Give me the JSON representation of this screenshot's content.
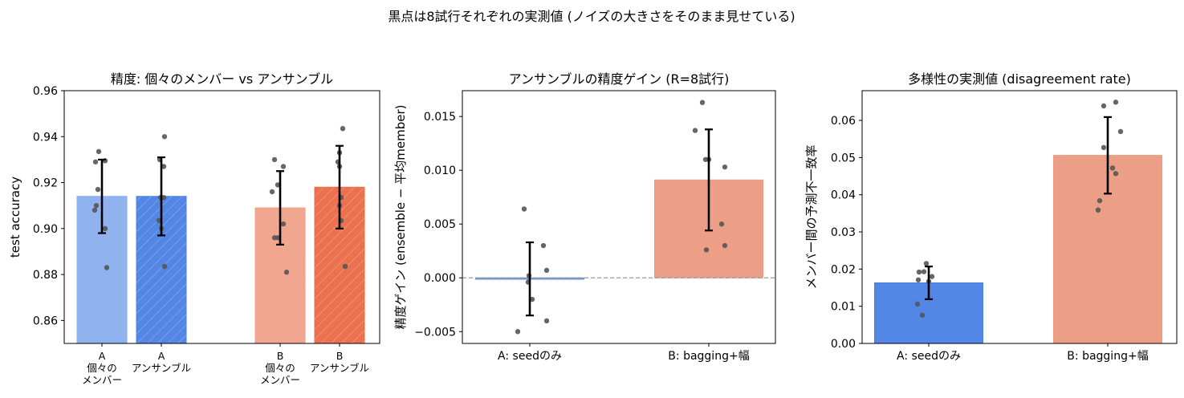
{
  "suptitle": "黒点は8試行それぞれの実測値 (ノイズの大きさをそのまま見せている)",
  "colors": {
    "blue_light": "#8aaeee",
    "blue": "#4a7fe4",
    "salmon_light": "#f0a18a",
    "red": "#ea6a46",
    "salmon": "#eb9a80",
    "steel_blue": "#6f93d4",
    "dot": "#555555",
    "errorbar": "#000000",
    "zero_line": "#999999"
  },
  "chart_data": [
    {
      "type": "bar",
      "title": "精度: 個々のメンバー vs アンサンブル",
      "ylabel": "test accuracy",
      "xlabel": "",
      "ylim": [
        0.85,
        0.96
      ],
      "yticks": [
        "0.86",
        "0.88",
        "0.90",
        "0.92",
        "0.94",
        "0.96"
      ],
      "categories": [
        "A\n個々の\nメンバー",
        "A\nアンサンブル",
        "B\n個々の\nメンバー",
        "B\nアンサンブル"
      ],
      "values": [
        0.914,
        0.914,
        0.909,
        0.918
      ],
      "errors": [
        0.016,
        0.017,
        0.016,
        0.018
      ],
      "hatched": [
        false,
        true,
        false,
        true
      ],
      "bar_colors": [
        "blue_light",
        "blue",
        "salmon_light",
        "red"
      ],
      "points": [
        [
          0.9335,
          0.9295,
          0.929,
          0.917,
          0.91,
          0.908,
          0.9,
          0.883
        ],
        [
          0.94,
          0.93,
          0.927,
          0.9135,
          0.9135,
          0.9035,
          0.9,
          0.8835
        ],
        [
          0.93,
          0.927,
          0.919,
          0.916,
          0.902,
          0.896,
          0.881,
          0.896
        ],
        [
          0.9435,
          0.933,
          0.929,
          0.927,
          0.9135,
          0.91,
          0.9035,
          0.8835
        ]
      ]
    },
    {
      "type": "bar",
      "title": "アンサンブルの精度ゲイン (R=8試行)",
      "ylabel": "精度ゲイン (ensemble − 平均member)",
      "xlabel": "",
      "ylim": [
        -0.0061,
        0.0174
      ],
      "yticks": [
        "−0.005",
        "0.000",
        "0.005",
        "0.010",
        "0.015"
      ],
      "categories": [
        "A: seedのみ",
        "B: bagging+幅"
      ],
      "values": [
        -0.0001,
        0.0091
      ],
      "errors": [
        0.0034,
        0.0047
      ],
      "hatched": [
        false,
        false
      ],
      "bar_colors": [
        "steel_blue",
        "salmon"
      ],
      "reference_line": 0,
      "points": [
        [
          0.0064,
          0.003,
          0.0007,
          0.0002,
          -0.0004,
          -0.002,
          -0.004,
          -0.005
        ],
        [
          0.0163,
          0.0137,
          0.011,
          0.011,
          0.0103,
          0.005,
          0.003,
          0.0026
        ]
      ]
    },
    {
      "type": "bar",
      "title": "多様性の実測値 (disagreement rate)",
      "ylabel": "メンバー間の予測不一致率",
      "xlabel": "",
      "ylim": [
        0.0,
        0.068
      ],
      "yticks": [
        "0.00",
        "0.01",
        "0.02",
        "0.03",
        "0.04",
        "0.05",
        "0.06"
      ],
      "categories": [
        "A: seedのみ",
        "B: bagging+幅"
      ],
      "values": [
        0.0163,
        0.0506
      ],
      "errors": [
        0.0044,
        0.0103
      ],
      "hatched": [
        false,
        false
      ],
      "bar_colors": [
        "blue",
        "salmon"
      ],
      "points": [
        [
          0.0215,
          0.0193,
          0.0192,
          0.018,
          0.0171,
          0.0167,
          0.0106,
          0.0076
        ],
        [
          0.0649,
          0.0639,
          0.057,
          0.0527,
          0.0472,
          0.0457,
          0.0384,
          0.0359
        ]
      ]
    }
  ]
}
